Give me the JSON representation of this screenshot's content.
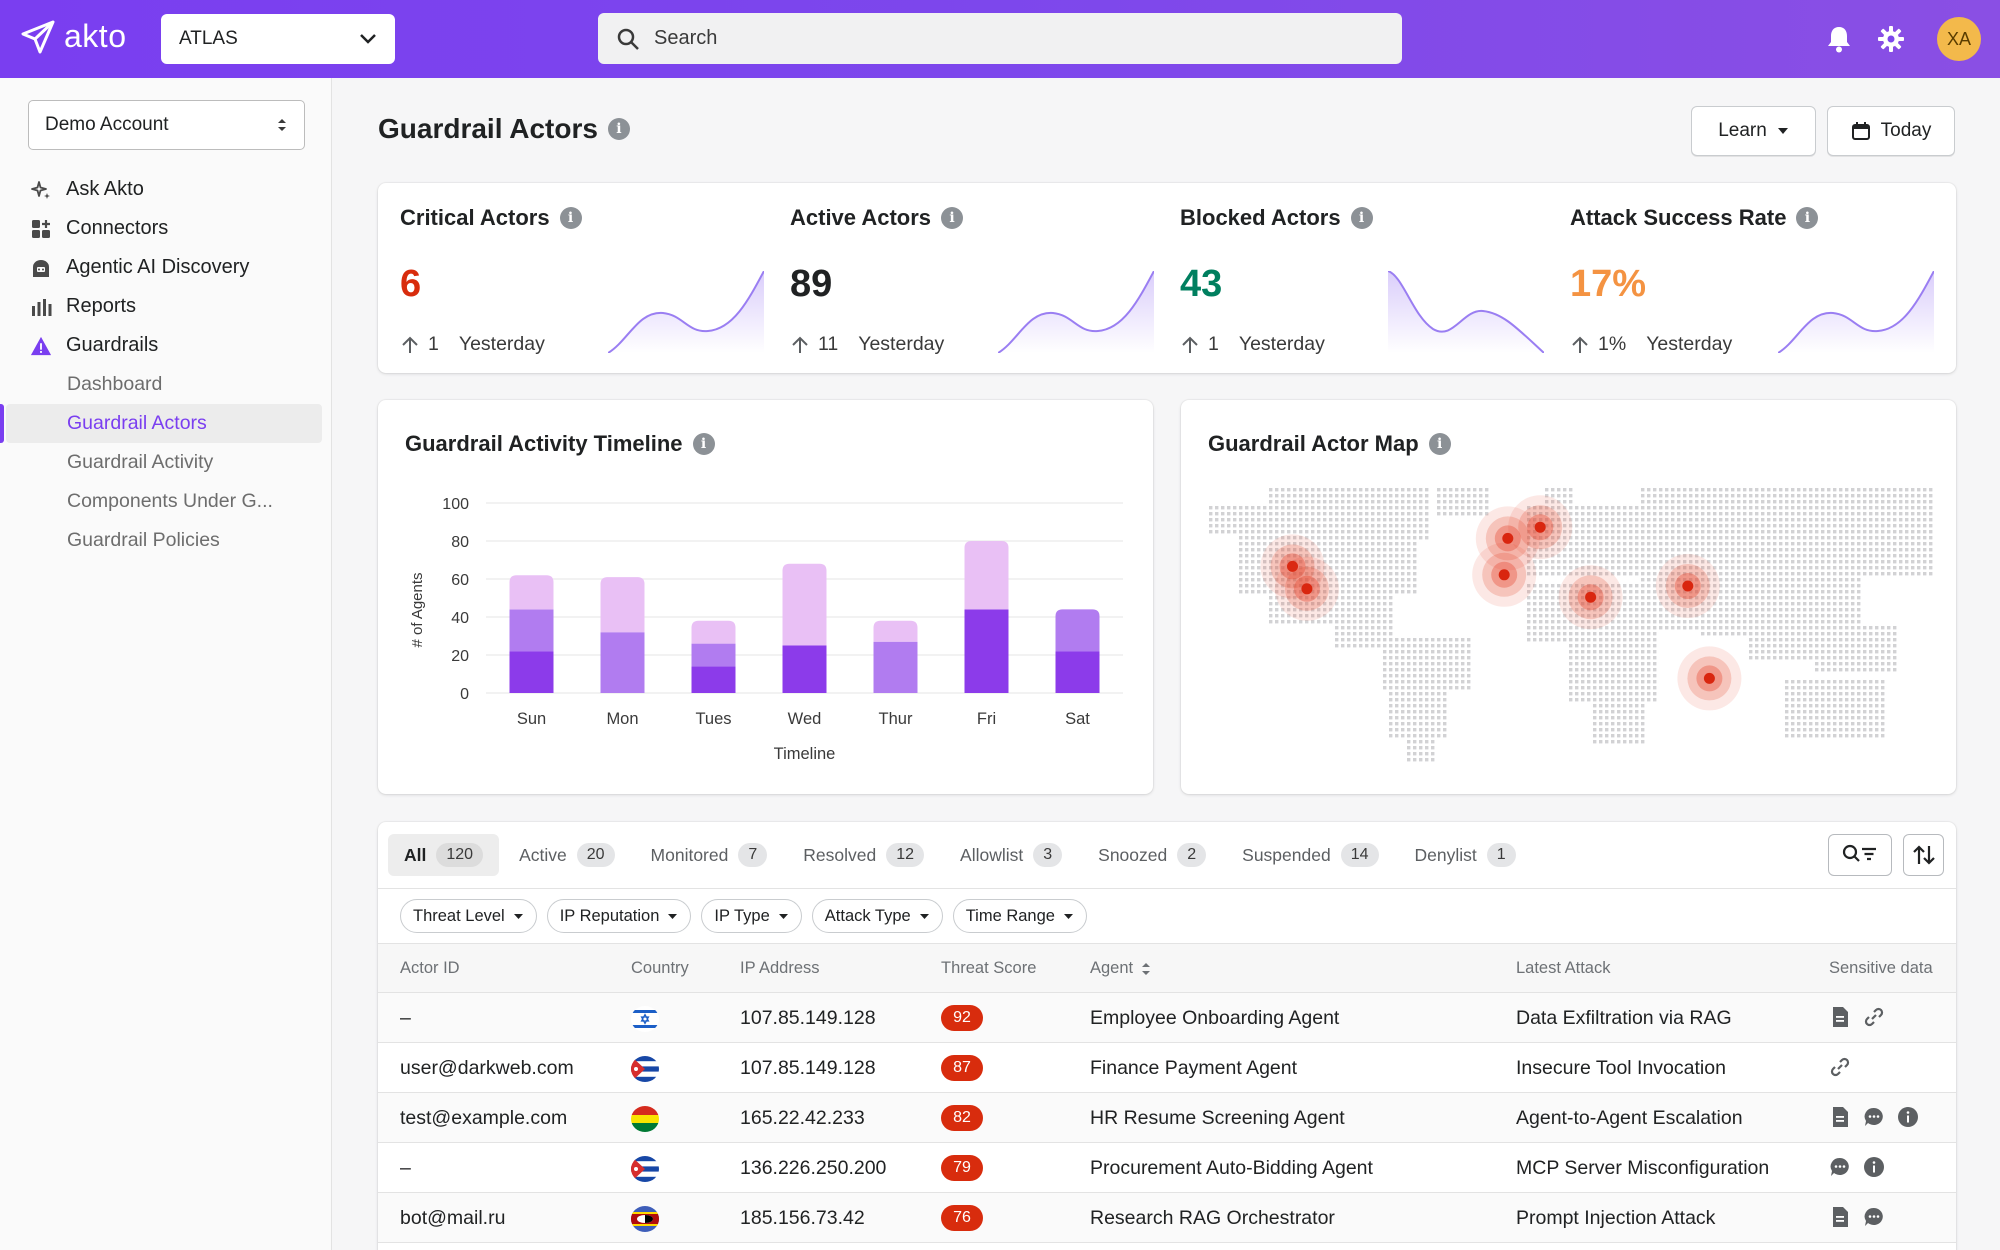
{
  "brand": {
    "name": "akto"
  },
  "header": {
    "collection": "ATLAS",
    "search_placeholder": "Search",
    "avatar_initials": "XA"
  },
  "sidebar": {
    "account": "Demo Account",
    "items": [
      {
        "label": "Ask Akto",
        "icon": "sparkle-icon"
      },
      {
        "label": "Connectors",
        "icon": "grid-plus-icon"
      },
      {
        "label": "Agentic AI Discovery",
        "icon": "robot-icon"
      },
      {
        "label": "Reports",
        "icon": "bar-chart-icon"
      },
      {
        "label": "Guardrails",
        "icon": "warning-triangle-icon"
      }
    ],
    "sub_items": [
      {
        "label": "Dashboard"
      },
      {
        "label": "Guardrail Actors",
        "active": true
      },
      {
        "label": "Guardrail Activity"
      },
      {
        "label": "Components Under G..."
      },
      {
        "label": "Guardrail Policies"
      }
    ]
  },
  "page": {
    "title": "Guardrail Actors",
    "learn_label": "Learn",
    "date_label": "Today"
  },
  "kpis": [
    {
      "title": "Critical Actors",
      "value": "6",
      "delta": "1",
      "delta_label": "Yesterday",
      "color": "#d82c0d"
    },
    {
      "title": "Active Actors",
      "value": "89",
      "delta": "11",
      "delta_label": "Yesterday",
      "color": "#202223"
    },
    {
      "title": "Blocked Actors",
      "value": "43",
      "delta": "1",
      "delta_label": "Yesterday",
      "color": "#007f5f"
    },
    {
      "title": "Attack Success Rate",
      "value": "17%",
      "delta": "1%",
      "delta_label": "Yesterday",
      "color": "#f49342"
    }
  ],
  "timeline": {
    "title": "Guardrail Activity Timeline",
    "chart_data": {
      "type": "bar",
      "stacked": true,
      "categories": [
        "Sun",
        "Mon",
        "Tues",
        "Wed",
        "Thur",
        "Fri",
        "Sat"
      ],
      "series": [
        {
          "values": [
            22,
            0,
            14,
            25,
            0,
            44,
            22
          ],
          "color": "#8c3bea"
        },
        {
          "values": [
            22,
            32,
            12,
            0,
            27,
            0,
            22
          ],
          "color": "#b17cf0"
        },
        {
          "values": [
            18,
            29,
            12,
            43,
            11,
            36,
            0
          ],
          "color": "#e9c0f5"
        }
      ],
      "ylim": [
        0,
        100
      ],
      "yticks": [
        0,
        20,
        40,
        60,
        80,
        100
      ],
      "xlabel": "Timeline",
      "ylabel": "# of Agents",
      "grid": true
    }
  },
  "map": {
    "title": "Guardrail Actor Map"
  },
  "table": {
    "tabs": [
      {
        "label": "All",
        "count": "120",
        "active": true
      },
      {
        "label": "Active",
        "count": "20"
      },
      {
        "label": "Monitored",
        "count": "7"
      },
      {
        "label": "Resolved",
        "count": "12"
      },
      {
        "label": "Allowlist",
        "count": "3"
      },
      {
        "label": "Snoozed",
        "count": "2"
      },
      {
        "label": "Suspended",
        "count": "14"
      },
      {
        "label": "Denylist",
        "count": "1"
      }
    ],
    "filters": [
      "Threat Level",
      "IP Reputation",
      "IP Type",
      "Attack Type",
      "Time Range"
    ],
    "columns": [
      "Actor ID",
      "Country",
      "IP Address",
      "Threat Score",
      "Agent",
      "Latest Attack",
      "Sensitive data"
    ],
    "rows": [
      {
        "actor": "–",
        "flag": "israel",
        "ip": "107.85.149.128",
        "score": "92",
        "agent": "Employee Onboarding Agent",
        "attack": "Data Exfiltration via RAG",
        "sensitive": [
          "document-icon",
          "link-icon"
        ]
      },
      {
        "actor": "user@darkweb.com",
        "flag": "cuba",
        "ip": "107.85.149.128",
        "score": "87",
        "agent": "Finance Payment Agent",
        "attack": "Insecure Tool Invocation",
        "sensitive": [
          "link-icon"
        ]
      },
      {
        "actor": "test@example.com",
        "flag": "bolivia",
        "ip": "165.22.42.233",
        "score": "82",
        "agent": "HR Resume Screening Agent",
        "attack": "Agent-to-Agent Escalation",
        "sensitive": [
          "document-icon",
          "chat-icon",
          "info-icon"
        ]
      },
      {
        "actor": "–",
        "flag": "cuba",
        "ip": "136.226.250.200",
        "score": "79",
        "agent": "Procurement Auto-Bidding Agent",
        "attack": "MCP Server Misconfiguration",
        "sensitive": [
          "chat-icon",
          "info-icon"
        ]
      },
      {
        "actor": "bot@mail.ru",
        "flag": "eswatini",
        "ip": "185.156.73.42",
        "score": "76",
        "agent": "Research RAG Orchestrator",
        "attack": "Prompt Injection Attack",
        "sensitive": [
          "document-icon",
          "chat-icon"
        ]
      }
    ]
  }
}
